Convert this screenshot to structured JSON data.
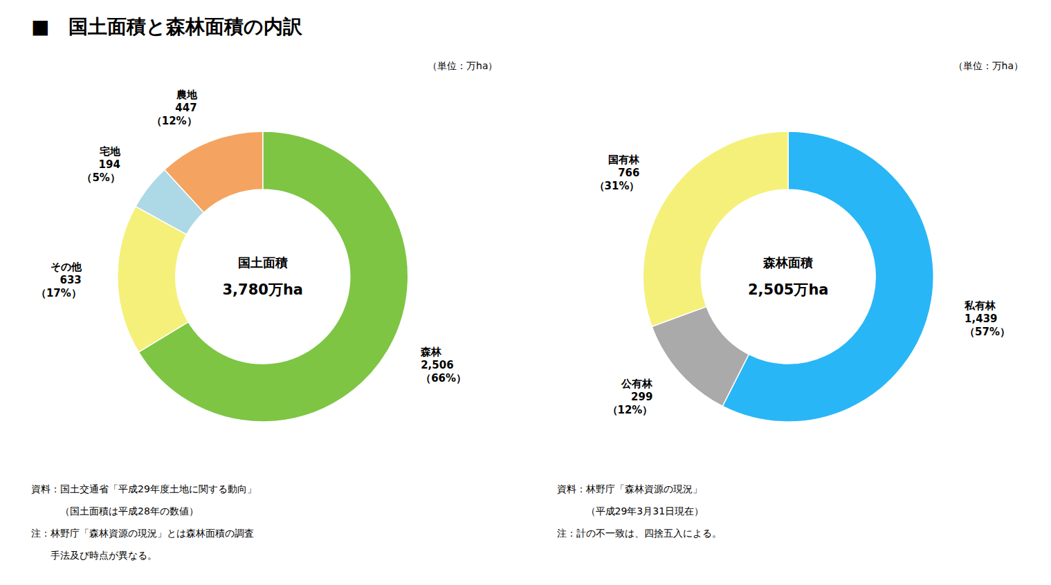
{
  "chart_data": [
    {
      "type": "donut",
      "title": "■　国土面積と森林面積の内訳",
      "center_text": [
        "国土面積",
        "3,780万ha"
      ],
      "unit_label": "（単位：万ha）",
      "categories": [
        "森林",
        "その他",
        "宅地",
        "農地"
      ],
      "values": [
        2506,
        633,
        194,
        447
      ],
      "value_labels": [
        "2,506",
        "633",
        "194",
        "447"
      ],
      "percentages": [
        66,
        17,
        5,
        12
      ],
      "percentage_labels": [
        "（66%）",
        "（17%）",
        "（5%）",
        "（12%）"
      ],
      "colors": [
        "#7DC543",
        "#F5F07A",
        "#ADD8E6",
        "#F4A460"
      ],
      "notes": [
        "資料：国土交通省「平成29年度土地に関する動向」",
        "　　　（国土面積は平成28年の数値）",
        "注：林野庁「森林資源の現況」とは森林面積の調査",
        "　　手法及び時点が異なる。"
      ]
    },
    {
      "type": "donut",
      "center_text": [
        "森林面積",
        "2,505万ha"
      ],
      "unit_label": "（単位：万ha）",
      "categories": [
        "私有林",
        "公有林",
        "国有林"
      ],
      "values": [
        1439,
        299,
        766
      ],
      "value_labels": [
        "1,439",
        "299",
        "766"
      ],
      "percentages": [
        57,
        12,
        31
      ],
      "percentage_labels": [
        "（57%）",
        "（12%）",
        "（31%）"
      ],
      "colors": [
        "#29B6F6",
        "#AAAAAA",
        "#F5F07A"
      ],
      "notes": [
        "資料：林野庁「森林資源の現況」",
        "　　　（平成29年3月31日現在）",
        "注：計の不一致は、四捨五入による。"
      ]
    }
  ]
}
